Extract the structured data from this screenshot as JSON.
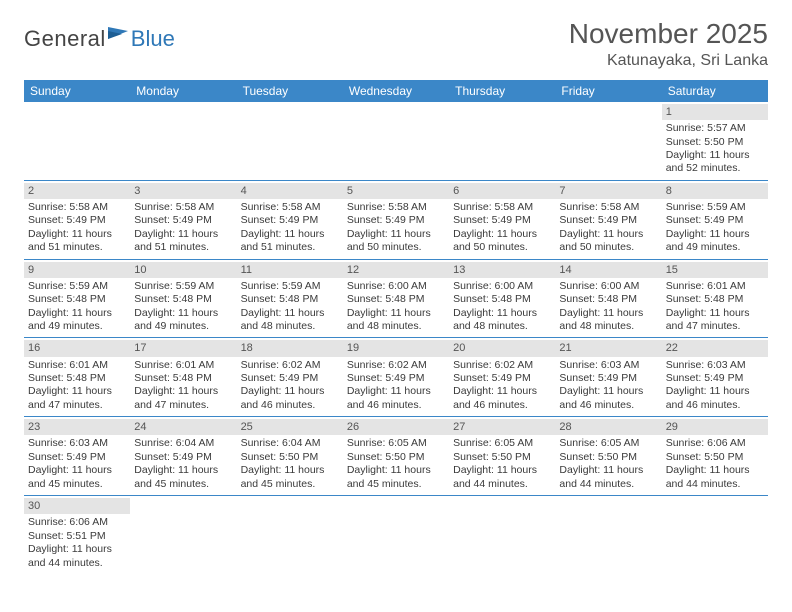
{
  "logo": {
    "text1": "General",
    "text2": "Blue"
  },
  "title": "November 2025",
  "location": "Katunayaka, Sri Lanka",
  "colors": {
    "header_bg": "#3b87c8",
    "header_text": "#ffffff",
    "daynum_bg": "#e4e4e4",
    "row_border": "#3b87c8",
    "logo_accent": "#2f78b7",
    "text": "#3a3a3a"
  },
  "dow": [
    "Sunday",
    "Monday",
    "Tuesday",
    "Wednesday",
    "Thursday",
    "Friday",
    "Saturday"
  ],
  "weeks": [
    [
      null,
      null,
      null,
      null,
      null,
      null,
      {
        "n": "1",
        "sr": "Sunrise: 5:57 AM",
        "ss": "Sunset: 5:50 PM",
        "d1": "Daylight: 11 hours",
        "d2": "and 52 minutes."
      }
    ],
    [
      {
        "n": "2",
        "sr": "Sunrise: 5:58 AM",
        "ss": "Sunset: 5:49 PM",
        "d1": "Daylight: 11 hours",
        "d2": "and 51 minutes."
      },
      {
        "n": "3",
        "sr": "Sunrise: 5:58 AM",
        "ss": "Sunset: 5:49 PM",
        "d1": "Daylight: 11 hours",
        "d2": "and 51 minutes."
      },
      {
        "n": "4",
        "sr": "Sunrise: 5:58 AM",
        "ss": "Sunset: 5:49 PM",
        "d1": "Daylight: 11 hours",
        "d2": "and 51 minutes."
      },
      {
        "n": "5",
        "sr": "Sunrise: 5:58 AM",
        "ss": "Sunset: 5:49 PM",
        "d1": "Daylight: 11 hours",
        "d2": "and 50 minutes."
      },
      {
        "n": "6",
        "sr": "Sunrise: 5:58 AM",
        "ss": "Sunset: 5:49 PM",
        "d1": "Daylight: 11 hours",
        "d2": "and 50 minutes."
      },
      {
        "n": "7",
        "sr": "Sunrise: 5:58 AM",
        "ss": "Sunset: 5:49 PM",
        "d1": "Daylight: 11 hours",
        "d2": "and 50 minutes."
      },
      {
        "n": "8",
        "sr": "Sunrise: 5:59 AM",
        "ss": "Sunset: 5:49 PM",
        "d1": "Daylight: 11 hours",
        "d2": "and 49 minutes."
      }
    ],
    [
      {
        "n": "9",
        "sr": "Sunrise: 5:59 AM",
        "ss": "Sunset: 5:48 PM",
        "d1": "Daylight: 11 hours",
        "d2": "and 49 minutes."
      },
      {
        "n": "10",
        "sr": "Sunrise: 5:59 AM",
        "ss": "Sunset: 5:48 PM",
        "d1": "Daylight: 11 hours",
        "d2": "and 49 minutes."
      },
      {
        "n": "11",
        "sr": "Sunrise: 5:59 AM",
        "ss": "Sunset: 5:48 PM",
        "d1": "Daylight: 11 hours",
        "d2": "and 48 minutes."
      },
      {
        "n": "12",
        "sr": "Sunrise: 6:00 AM",
        "ss": "Sunset: 5:48 PM",
        "d1": "Daylight: 11 hours",
        "d2": "and 48 minutes."
      },
      {
        "n": "13",
        "sr": "Sunrise: 6:00 AM",
        "ss": "Sunset: 5:48 PM",
        "d1": "Daylight: 11 hours",
        "d2": "and 48 minutes."
      },
      {
        "n": "14",
        "sr": "Sunrise: 6:00 AM",
        "ss": "Sunset: 5:48 PM",
        "d1": "Daylight: 11 hours",
        "d2": "and 48 minutes."
      },
      {
        "n": "15",
        "sr": "Sunrise: 6:01 AM",
        "ss": "Sunset: 5:48 PM",
        "d1": "Daylight: 11 hours",
        "d2": "and 47 minutes."
      }
    ],
    [
      {
        "n": "16",
        "sr": "Sunrise: 6:01 AM",
        "ss": "Sunset: 5:48 PM",
        "d1": "Daylight: 11 hours",
        "d2": "and 47 minutes."
      },
      {
        "n": "17",
        "sr": "Sunrise: 6:01 AM",
        "ss": "Sunset: 5:48 PM",
        "d1": "Daylight: 11 hours",
        "d2": "and 47 minutes."
      },
      {
        "n": "18",
        "sr": "Sunrise: 6:02 AM",
        "ss": "Sunset: 5:49 PM",
        "d1": "Daylight: 11 hours",
        "d2": "and 46 minutes."
      },
      {
        "n": "19",
        "sr": "Sunrise: 6:02 AM",
        "ss": "Sunset: 5:49 PM",
        "d1": "Daylight: 11 hours",
        "d2": "and 46 minutes."
      },
      {
        "n": "20",
        "sr": "Sunrise: 6:02 AM",
        "ss": "Sunset: 5:49 PM",
        "d1": "Daylight: 11 hours",
        "d2": "and 46 minutes."
      },
      {
        "n": "21",
        "sr": "Sunrise: 6:03 AM",
        "ss": "Sunset: 5:49 PM",
        "d1": "Daylight: 11 hours",
        "d2": "and 46 minutes."
      },
      {
        "n": "22",
        "sr": "Sunrise: 6:03 AM",
        "ss": "Sunset: 5:49 PM",
        "d1": "Daylight: 11 hours",
        "d2": "and 46 minutes."
      }
    ],
    [
      {
        "n": "23",
        "sr": "Sunrise: 6:03 AM",
        "ss": "Sunset: 5:49 PM",
        "d1": "Daylight: 11 hours",
        "d2": "and 45 minutes."
      },
      {
        "n": "24",
        "sr": "Sunrise: 6:04 AM",
        "ss": "Sunset: 5:49 PM",
        "d1": "Daylight: 11 hours",
        "d2": "and 45 minutes."
      },
      {
        "n": "25",
        "sr": "Sunrise: 6:04 AM",
        "ss": "Sunset: 5:50 PM",
        "d1": "Daylight: 11 hours",
        "d2": "and 45 minutes."
      },
      {
        "n": "26",
        "sr": "Sunrise: 6:05 AM",
        "ss": "Sunset: 5:50 PM",
        "d1": "Daylight: 11 hours",
        "d2": "and 45 minutes."
      },
      {
        "n": "27",
        "sr": "Sunrise: 6:05 AM",
        "ss": "Sunset: 5:50 PM",
        "d1": "Daylight: 11 hours",
        "d2": "and 44 minutes."
      },
      {
        "n": "28",
        "sr": "Sunrise: 6:05 AM",
        "ss": "Sunset: 5:50 PM",
        "d1": "Daylight: 11 hours",
        "d2": "and 44 minutes."
      },
      {
        "n": "29",
        "sr": "Sunrise: 6:06 AM",
        "ss": "Sunset: 5:50 PM",
        "d1": "Daylight: 11 hours",
        "d2": "and 44 minutes."
      }
    ],
    [
      {
        "n": "30",
        "sr": "Sunrise: 6:06 AM",
        "ss": "Sunset: 5:51 PM",
        "d1": "Daylight: 11 hours",
        "d2": "and 44 minutes."
      },
      null,
      null,
      null,
      null,
      null,
      null
    ]
  ]
}
